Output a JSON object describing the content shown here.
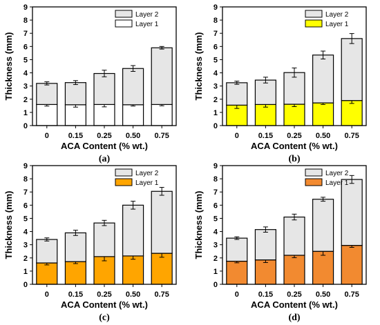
{
  "chart_data": [
    {
      "type": "bar",
      "stacked": true,
      "panel_label": "(a)",
      "categories": [
        "0",
        "0.15",
        "0.25",
        "0.50",
        "0.75"
      ],
      "xlabel": "ACA Content (% wt.)",
      "ylabel": "Thickness (mm)",
      "ylim": [
        0,
        9
      ],
      "yticks": [
        "0",
        "1",
        "2",
        "3",
        "4",
        "5",
        "6",
        "7",
        "8",
        "9"
      ],
      "legend_position": "top-right",
      "series": [
        {
          "name": "Layer 1",
          "color": "#ffffff",
          "values": [
            1.6,
            1.58,
            1.6,
            1.58,
            1.6
          ],
          "errors": [
            0.12,
            0.18,
            0.18,
            0.1,
            0.1
          ]
        },
        {
          "name": "Layer 2",
          "color": "#e6e6e6",
          "values": [
            1.6,
            1.68,
            2.35,
            2.75,
            4.3
          ],
          "errors": [
            0.12,
            0.15,
            0.25,
            0.22,
            0.1
          ]
        }
      ]
    },
    {
      "type": "bar",
      "stacked": true,
      "panel_label": "(b)",
      "categories": [
        "0",
        "0.15",
        "0.25",
        "0.50",
        "0.75"
      ],
      "xlabel": "ACA Content (% wt.)",
      "ylabel": "Thickness (mm)",
      "ylim": [
        0,
        9
      ],
      "yticks": [
        "0",
        "1",
        "2",
        "3",
        "4",
        "5",
        "6",
        "7",
        "8",
        "9"
      ],
      "legend_position": "top-right",
      "series": [
        {
          "name": "Layer 1",
          "color": "#ffff00",
          "values": [
            1.55,
            1.6,
            1.62,
            1.72,
            1.9
          ],
          "errors": [
            0.25,
            0.2,
            0.18,
            0.12,
            0.22
          ]
        },
        {
          "name": "Layer 2",
          "color": "#e6e6e6",
          "values": [
            1.7,
            1.85,
            2.4,
            3.63,
            4.7
          ],
          "errors": [
            0.12,
            0.22,
            0.35,
            0.3,
            0.38
          ]
        }
      ]
    },
    {
      "type": "bar",
      "stacked": true,
      "panel_label": "(c)",
      "categories": [
        "0",
        "0.15",
        "0.25",
        "0.50",
        "0.75"
      ],
      "xlabel": "ACA Content (% wt.)",
      "ylabel": "Thickness (mm)",
      "ylim": [
        0,
        9
      ],
      "yticks": [
        "0",
        "1",
        "2",
        "3",
        "4",
        "5",
        "6",
        "7",
        "8",
        "9"
      ],
      "legend_position": "top-right",
      "series": [
        {
          "name": "Layer 1",
          "color": "#ffa500",
          "values": [
            1.62,
            1.72,
            2.1,
            2.15,
            2.35
          ],
          "errors": [
            0.15,
            0.15,
            0.32,
            0.25,
            0.3
          ]
        },
        {
          "name": "Layer 2",
          "color": "#e6e6e6",
          "values": [
            1.78,
            2.18,
            2.55,
            3.85,
            4.7
          ],
          "errors": [
            0.12,
            0.2,
            0.2,
            0.3,
            0.3
          ]
        }
      ]
    },
    {
      "type": "bar",
      "stacked": true,
      "panel_label": "(d)",
      "categories": [
        "0",
        "0.15",
        "0.25",
        "0.50",
        "0.75"
      ],
      "xlabel": "ACA Content (% wt.)",
      "ylabel": "Thickness (mm)",
      "ylim": [
        0,
        9
      ],
      "yticks": [
        "0",
        "1",
        "2",
        "3",
        "4",
        "5",
        "6",
        "7",
        "8",
        "9"
      ],
      "legend_position": "top-right",
      "series": [
        {
          "name": "Layer 1",
          "color": "#f28a30",
          "values": [
            1.75,
            1.85,
            2.2,
            2.5,
            2.95
          ],
          "errors": [
            0.12,
            0.2,
            0.18,
            0.3,
            0.15
          ]
        },
        {
          "name": "Layer 2",
          "color": "#e6e6e6",
          "values": [
            1.75,
            2.3,
            2.9,
            3.95,
            5.0
          ],
          "errors": [
            0.1,
            0.2,
            0.22,
            0.15,
            0.3
          ]
        }
      ]
    }
  ]
}
